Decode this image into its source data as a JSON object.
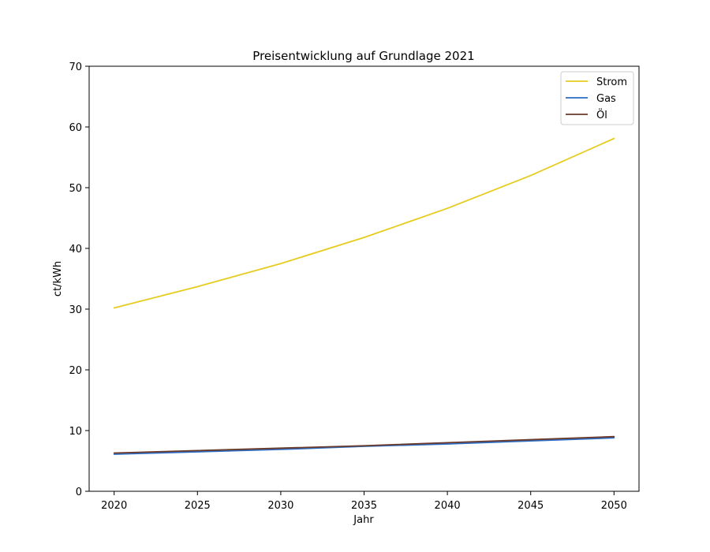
{
  "chart_data": {
    "type": "line",
    "title": "Preisentwicklung auf Grundlage 2021",
    "xlabel": "Jahr",
    "ylabel": "ct/kWh",
    "xlim": [
      2018.5,
      2051.5
    ],
    "ylim": [
      0,
      70
    ],
    "xticks": [
      2020,
      2025,
      2030,
      2035,
      2040,
      2045,
      2050
    ],
    "yticks": [
      0,
      10,
      20,
      30,
      40,
      50,
      60,
      70
    ],
    "grid": false,
    "legend_position": "top-right",
    "x": [
      2020,
      2025,
      2030,
      2035,
      2040,
      2045,
      2050
    ],
    "series": [
      {
        "name": "Strom",
        "color": "#e6cc1f",
        "values": [
          30.2,
          33.7,
          37.5,
          41.8,
          46.6,
          52.0,
          58.1
        ]
      },
      {
        "name": "Gas",
        "color": "#2b6cc4",
        "values": [
          6.1,
          6.5,
          6.9,
          7.4,
          7.8,
          8.3,
          8.8
        ]
      },
      {
        "name": "Öl",
        "color": "#6b3a2a",
        "values": [
          6.3,
          6.7,
          7.1,
          7.5,
          8.0,
          8.5,
          9.0
        ]
      }
    ]
  }
}
